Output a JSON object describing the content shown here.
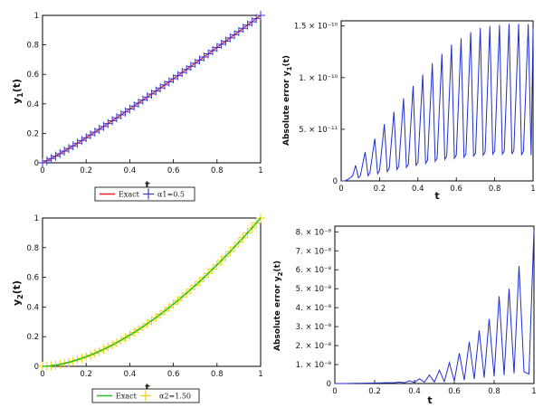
{
  "colors": {
    "exact_red": "#e8202a",
    "alpha1_blue": "#3a3ad0",
    "exact_green": "#22c322",
    "alpha2_yellow": "#f2d000",
    "error_blue": "#1f2fd0",
    "frame": "#000000"
  },
  "chart_data": [
    {
      "type": "line",
      "id": "p1",
      "xlabel": "t",
      "ylabel": "y1(t)",
      "xlim": [
        0,
        1
      ],
      "ylim": [
        0,
        1
      ],
      "xticks": [
        "0",
        "0.2",
        "0.4",
        "0.6",
        "0.8",
        "1"
      ],
      "yticks": [
        "0",
        "0.2",
        "0.4",
        "0.6",
        "0.8",
        "1"
      ],
      "grid": false,
      "legend_position": "bottom",
      "series": [
        {
          "name": "Exact",
          "marker": "line",
          "formula": "y = t^1.1",
          "x_range": [
            0,
            1
          ]
        },
        {
          "name": "α1=0.5",
          "marker": "plus",
          "x_step": 0.02,
          "x_range": [
            0,
            1
          ],
          "formula": "y = t^1.1"
        }
      ]
    },
    {
      "type": "line",
      "id": "p2",
      "xlabel": "t",
      "ylabel": "Absolute error y1(t)",
      "xlim": [
        0,
        1
      ],
      "ylim": [
        0,
        1.55e-10
      ],
      "xticks": [
        "0",
        "0.2",
        "0.4",
        "0.6",
        "0.8",
        "1"
      ],
      "yticks": [
        "0",
        "5. × 10⁻¹¹",
        "1. × 10⁻¹⁰",
        "1.5 × 10⁻¹⁰"
      ],
      "ytick_values": [
        0,
        5e-11,
        1e-10,
        1.5e-10
      ],
      "grid": false,
      "series": [
        {
          "x": [
            0,
            0.02,
            0.04,
            0.06,
            0.075,
            0.09,
            0.1,
            0.125,
            0.14,
            0.15,
            0.175,
            0.19,
            0.2,
            0.225,
            0.24,
            0.25,
            0.275,
            0.29,
            0.3,
            0.325,
            0.34,
            0.35,
            0.375,
            0.39,
            0.4,
            0.425,
            0.44,
            0.45,
            0.475,
            0.49,
            0.5,
            0.525,
            0.54,
            0.55,
            0.575,
            0.59,
            0.6,
            0.625,
            0.64,
            0.65,
            0.675,
            0.69,
            0.7,
            0.725,
            0.74,
            0.75,
            0.775,
            0.79,
            0.8,
            0.825,
            0.84,
            0.85,
            0.875,
            0.89,
            0.9,
            0.925,
            0.94,
            0.95,
            0.975,
            0.99,
            1
          ],
          "y": [
            0,
            0,
            2e-12,
            5e-12,
            1.5e-11,
            3e-12,
            5e-12,
            2.8e-11,
            5e-12,
            8e-12,
            4.1e-11,
            7e-12,
            1e-11,
            5.5e-11,
            9e-12,
            1.2e-11,
            6.7e-11,
            1.1e-11,
            1.4e-11,
            8e-11,
            1.3e-11,
            1.6e-11,
            9.2e-11,
            1.5e-11,
            1.8e-11,
            1.03e-10,
            1.7e-11,
            2e-11,
            1.14e-10,
            1.9e-11,
            2.2e-11,
            1.23e-10,
            2.1e-11,
            2.4e-11,
            1.32e-10,
            2.2e-11,
            2.5e-11,
            1.38e-10,
            2.3e-11,
            2.6e-11,
            1.44e-10,
            2.4e-11,
            2.7e-11,
            1.48e-10,
            2.5e-11,
            2.8e-11,
            1.5e-10,
            2.6e-11,
            2.9e-11,
            1.51e-10,
            2.6e-11,
            2.9e-11,
            1.52e-10,
            2.6e-11,
            3e-11,
            1.52e-10,
            2.5e-11,
            2.9e-11,
            1.52e-10,
            2.5e-11,
            1.48e-10
          ]
        }
      ]
    },
    {
      "type": "line",
      "id": "p3",
      "xlabel": "t",
      "ylabel": "y2(t)",
      "xlim": [
        0,
        1
      ],
      "ylim": [
        0,
        1
      ],
      "xticks": [
        "0",
        "0.2",
        "0.4",
        "0.6",
        "0.8",
        "1"
      ],
      "yticks": [
        "0",
        "0.2",
        "0.4",
        "0.6",
        "0.8",
        "1"
      ],
      "grid": false,
      "legend_position": "bottom",
      "series": [
        {
          "name": "Exact",
          "marker": "line",
          "formula": "y = t^1.7",
          "x_range": [
            0,
            1
          ]
        },
        {
          "name": "α2=1.50",
          "marker": "plus",
          "x_step": 0.02,
          "x_range": [
            0,
            1
          ],
          "formula": "y = t^1.7"
        }
      ]
    },
    {
      "type": "line",
      "id": "p4",
      "xlabel": "t",
      "ylabel": "Absolute error y2(t)",
      "xlim": [
        0,
        1
      ],
      "ylim": [
        0,
        8.3e-08
      ],
      "xticks": [
        "0",
        "0.2",
        "0.4",
        "0.6",
        "0.8",
        "1"
      ],
      "yticks": [
        "0",
        "1. × 10⁻⁸",
        "2. × 10⁻⁸",
        "3. × 10⁻⁸",
        "4. × 10⁻⁸",
        "5. × 10⁻⁸",
        "6. × 10⁻⁸",
        "7. × 10⁻⁸",
        "8. × 10⁻⁸"
      ],
      "ytick_values": [
        0,
        1e-08,
        2e-08,
        3e-08,
        4e-08,
        5e-08,
        6e-08,
        7e-08,
        8e-08
      ],
      "grid": false,
      "series": [
        {
          "x": [
            0,
            0.05,
            0.1,
            0.15,
            0.2,
            0.225,
            0.25,
            0.275,
            0.3,
            0.325,
            0.35,
            0.375,
            0.4,
            0.425,
            0.45,
            0.475,
            0.5,
            0.525,
            0.55,
            0.575,
            0.6,
            0.625,
            0.65,
            0.675,
            0.7,
            0.725,
            0.75,
            0.775,
            0.8,
            0.825,
            0.85,
            0.875,
            0.9,
            0.925,
            0.95,
            0.975,
            1
          ],
          "y": [
            0,
            0,
            1e-10,
            2e-10,
            3e-10,
            3e-10,
            4e-10,
            4e-10,
            5e-10,
            8e-10,
            4e-10,
            1.5e-09,
            5e-10,
            2.5e-09,
            7e-10,
            4.5e-09,
            8e-10,
            7e-09,
            1e-09,
            1.1e-08,
            1.3e-09,
            1.6e-08,
            1.8e-09,
            2.2e-08,
            2.4e-09,
            2.8e-08,
            3.1e-09,
            3.4e-08,
            3.7e-09,
            4.6e-08,
            4.4e-09,
            5e-08,
            5.3e-09,
            6.2e-08,
            6.2e-09,
            5e-09,
            8.1e-08
          ]
        }
      ]
    }
  ],
  "legends": {
    "p1": {
      "exact": "Exact",
      "alpha": "α1=0.5"
    },
    "p3": {
      "exact": "Exact",
      "alpha": "α2=1.50"
    }
  }
}
